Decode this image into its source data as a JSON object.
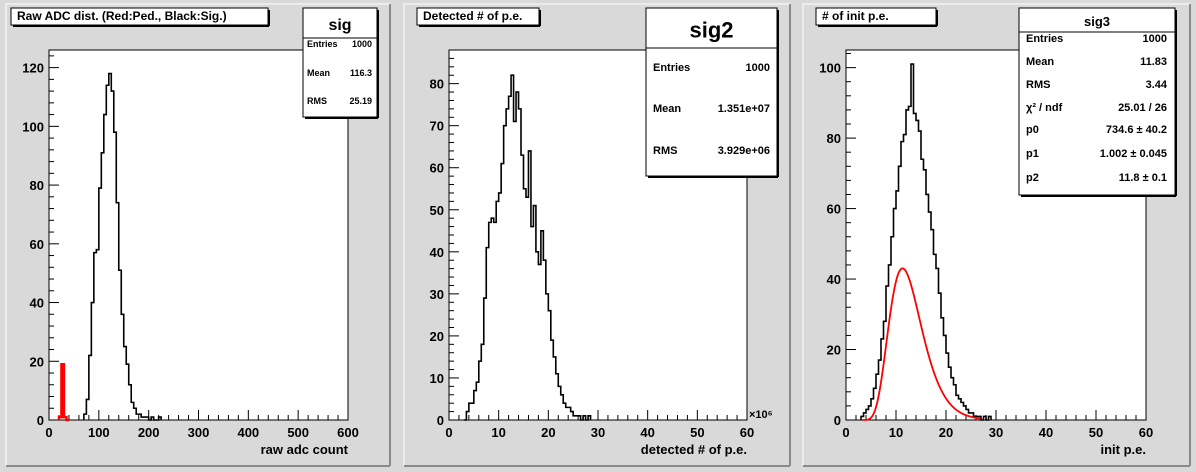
{
  "panels": [
    {
      "title": "Raw ADC dist. (Red:Ped., Black:Sig.)",
      "stats": {
        "name": "sig",
        "rows": [
          [
            "Entries",
            "1000"
          ],
          [
            "Mean",
            "116.3"
          ],
          [
            "RMS",
            "25.19"
          ]
        ]
      }
    },
    {
      "title": "Detected # of p.e.",
      "stats": {
        "name": "sig2",
        "rows": [
          [
            "Entries",
            "1000"
          ],
          [
            "Mean",
            "1.351e+07"
          ],
          [
            "RMS",
            "3.929e+06"
          ]
        ]
      }
    },
    {
      "title": "# of init p.e.",
      "stats": {
        "name": "sig3",
        "rows": [
          [
            "Entries",
            "1000"
          ],
          [
            "Mean",
            "11.83"
          ],
          [
            "RMS",
            "3.44"
          ],
          [
            "χ² / ndf",
            "25.01 / 26"
          ],
          [
            "p0",
            "734.6 ± 40.2"
          ],
          [
            "p1",
            "1.002 ± 0.045"
          ],
          [
            "p2",
            "11.8 ± 0.1"
          ]
        ]
      }
    }
  ],
  "colors": {
    "background": "#d9d9d9",
    "frame": "#ffffff",
    "signal": "#000000",
    "pedestal": "#ff0000",
    "fit": "#ff0000"
  },
  "chart_data": [
    {
      "type": "histogram",
      "title": "Raw ADC dist. (Red:Ped., Black:Sig.)",
      "xlabel": "raw adc count",
      "ylabel": "",
      "xlim": [
        0,
        600
      ],
      "ylim": [
        0,
        126
      ],
      "xticks": [
        0,
        100,
        200,
        300,
        400,
        500,
        600
      ],
      "yticks": [
        0,
        20,
        40,
        60,
        80,
        100,
        120
      ],
      "series": [
        {
          "bin_width": 5,
          "x_start": 70,
          "values": [
            2,
            7,
            22,
            40,
            57,
            58,
            79,
            91,
            104,
            114,
            118,
            112,
            98,
            74,
            51,
            36,
            25,
            19,
            12,
            6,
            4,
            2,
            2,
            1,
            1,
            1,
            0,
            1,
            0,
            0,
            1
          ]
        },
        {
          "bin_width": 5,
          "x_start": 20,
          "values": [
            1,
            19,
            1,
            0
          ]
        }
      ]
    },
    {
      "type": "histogram",
      "title": "Detected # of p.e.",
      "xlabel": "detected # of p.e.",
      "ylabel": "",
      "x_multiplier": "×10⁶",
      "xlim": [
        0,
        60
      ],
      "ylim": [
        0,
        88
      ],
      "xticks": [
        0,
        10,
        20,
        30,
        40,
        50,
        60
      ],
      "yticks": [
        0,
        10,
        20,
        30,
        40,
        50,
        60,
        70,
        80
      ],
      "series": [
        {
          "bin_width": 0.5,
          "x_start": 3,
          "values": [
            0,
            2,
            4,
            4,
            7,
            9,
            14,
            18,
            29,
            41,
            47,
            48,
            47,
            52,
            54,
            61,
            70,
            74,
            77,
            82,
            71,
            78,
            74,
            63,
            55,
            53,
            64,
            46,
            51,
            40,
            37,
            45,
            38,
            30,
            26,
            19,
            15,
            11,
            8,
            6,
            4,
            3,
            3,
            2,
            1,
            1,
            1,
            0,
            1,
            0,
            1
          ]
        }
      ]
    },
    {
      "type": "histogram",
      "title": "# of init p.e.",
      "xlabel": "init p.e.",
      "ylabel": "",
      "xlim": [
        0,
        60
      ],
      "ylim": [
        0,
        105
      ],
      "xticks": [
        0,
        10,
        20,
        30,
        40,
        50,
        60
      ],
      "yticks": [
        0,
        20,
        40,
        60,
        80,
        100
      ],
      "series": [
        {
          "bin_width": 0.5,
          "x_start": 3,
          "values": [
            1,
            2,
            3,
            4,
            6,
            9,
            13,
            17,
            23,
            28,
            38,
            44,
            52,
            60,
            65,
            72,
            79,
            81,
            88,
            89,
            101,
            87,
            85,
            82,
            74,
            71,
            64,
            59,
            54,
            47,
            43,
            36,
            29,
            24,
            19,
            15,
            12,
            10,
            7,
            6,
            5,
            4,
            3,
            2,
            2,
            1,
            1,
            1,
            0,
            1,
            0,
            1
          ]
        }
      ],
      "fit": {
        "p0": 734.6,
        "p1": 1.002,
        "p2": 11.8,
        "x_range": [
          3.3,
          27
        ],
        "note": "Gaussian-like fit curve"
      }
    }
  ]
}
